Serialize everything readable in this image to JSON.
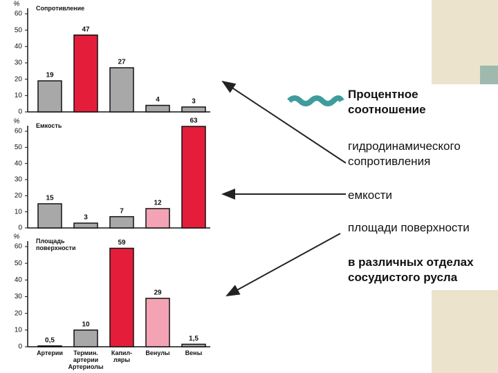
{
  "chart_data": [
    {
      "type": "bar",
      "title": "Сопротивление",
      "y_label": "%",
      "categories": [
        null,
        null,
        null,
        null,
        null
      ],
      "values": [
        19,
        47,
        27,
        4,
        3
      ],
      "colors": [
        "#a8a8a8",
        "#e41e3a",
        "#a8a8a8",
        "#a8a8a8",
        "#a8a8a8"
      ],
      "ylim": [
        0,
        60
      ],
      "yticks": [
        0,
        10,
        20,
        30,
        40,
        50,
        60
      ]
    },
    {
      "type": "bar",
      "title": "Емкость",
      "y_label": "%",
      "categories": [
        null,
        null,
        null,
        null,
        null
      ],
      "values": [
        15,
        3,
        7,
        12,
        63
      ],
      "colors": [
        "#a8a8a8",
        "#a8a8a8",
        "#a8a8a8",
        "#f4a3b4",
        "#e41e3a"
      ],
      "ylim": [
        0,
        60
      ],
      "yticks": [
        0,
        10,
        20,
        30,
        40,
        50,
        60
      ]
    },
    {
      "type": "bar",
      "title": "Площадь поверхности",
      "y_label": "%",
      "categories": [
        "Артерии",
        "Термин. артерии Артериолы",
        "Капил- ляры",
        "Венулы",
        "Вены"
      ],
      "values": [
        0.5,
        10,
        59,
        29,
        1.5
      ],
      "value_labels": [
        "0,5",
        "10",
        "59",
        "29",
        "1,5"
      ],
      "colors": [
        "#a8a8a8",
        "#a8a8a8",
        "#e41e3a",
        "#f4a3b4",
        "#a8a8a8"
      ],
      "ylim": [
        0,
        60
      ],
      "yticks": [
        0,
        10,
        20,
        30,
        40,
        50,
        60
      ]
    }
  ],
  "text": {
    "heading": "Процентное соотношение",
    "items": [
      "гидродинамического сопротивления",
      "емкости",
      "площади поверхности"
    ],
    "footer": "в различных отделах сосудистого русла"
  }
}
